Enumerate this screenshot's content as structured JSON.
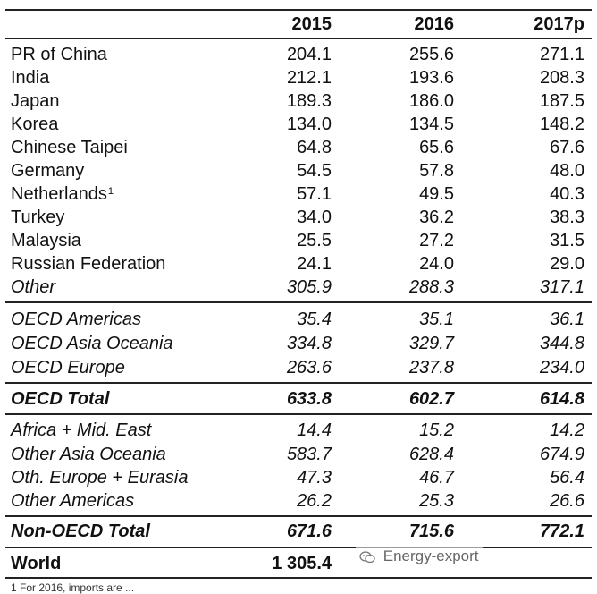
{
  "header": {
    "label": "",
    "y2015": "2015",
    "y2016": "2016",
    "y2017": "2017p"
  },
  "rows": [
    {
      "label": "PR of China",
      "v2015": "204.1",
      "v2016": "255.6",
      "v2017": "271.1"
    },
    {
      "label": "India",
      "v2015": "212.1",
      "v2016": "193.6",
      "v2017": "208.3"
    },
    {
      "label": "Japan",
      "v2015": "189.3",
      "v2016": "186.0",
      "v2017": "187.5"
    },
    {
      "label": "Korea",
      "v2015": "134.0",
      "v2016": "134.5",
      "v2017": "148.2"
    },
    {
      "label": "Chinese Taipei",
      "v2015": "64.8",
      "v2016": "65.6",
      "v2017": "67.6"
    },
    {
      "label": "Germany",
      "v2015": "54.5",
      "v2016": "57.8",
      "v2017": "48.0"
    },
    {
      "label": "Netherlands",
      "footnote": "1",
      "v2015": "57.1",
      "v2016": "49.5",
      "v2017": "40.3"
    },
    {
      "label": "Turkey",
      "v2015": "34.0",
      "v2016": "36.2",
      "v2017": "38.3"
    },
    {
      "label": "Malaysia",
      "v2015": "25.5",
      "v2016": "27.2",
      "v2017": "31.5"
    },
    {
      "label": "Russian Federation",
      "v2015": "24.1",
      "v2016": "24.0",
      "v2017": "29.0"
    },
    {
      "label": "Other",
      "v2015": "305.9",
      "v2016": "288.3",
      "v2017": "317.1"
    },
    {
      "label": "OECD Americas",
      "v2015": "35.4",
      "v2016": "35.1",
      "v2017": "36.1"
    },
    {
      "label": "OECD Asia Oceania",
      "v2015": "334.8",
      "v2016": "329.7",
      "v2017": "344.8"
    },
    {
      "label": "OECD Europe",
      "v2015": "263.6",
      "v2016": "237.8",
      "v2017": "234.0"
    },
    {
      "label": "OECD Total",
      "v2015": "633.8",
      "v2016": "602.7",
      "v2017": "614.8"
    },
    {
      "label": "Africa + Mid. East",
      "v2015": "14.4",
      "v2016": "15.2",
      "v2017": "14.2"
    },
    {
      "label": "Other Asia Oceania",
      "v2015": "583.7",
      "v2016": "628.4",
      "v2017": "674.9"
    },
    {
      "label": "Oth. Europe + Eurasia",
      "v2015": "47.3",
      "v2016": "46.7",
      "v2017": "56.4"
    },
    {
      "label": "Other Americas",
      "v2015": "26.2",
      "v2016": "25.3",
      "v2017": "26.6"
    },
    {
      "label": "Non-OECD Total",
      "v2015": "671.6",
      "v2016": "715.6",
      "v2017": "772.1"
    },
    {
      "label": "World",
      "v2015": "1 305.4",
      "v2016": "",
      "v2017": ""
    }
  ],
  "watermark": {
    "text": "Energy-export",
    "icon": "wechat-icon"
  },
  "footer_partial": "1 For 2016, imports are ..."
}
